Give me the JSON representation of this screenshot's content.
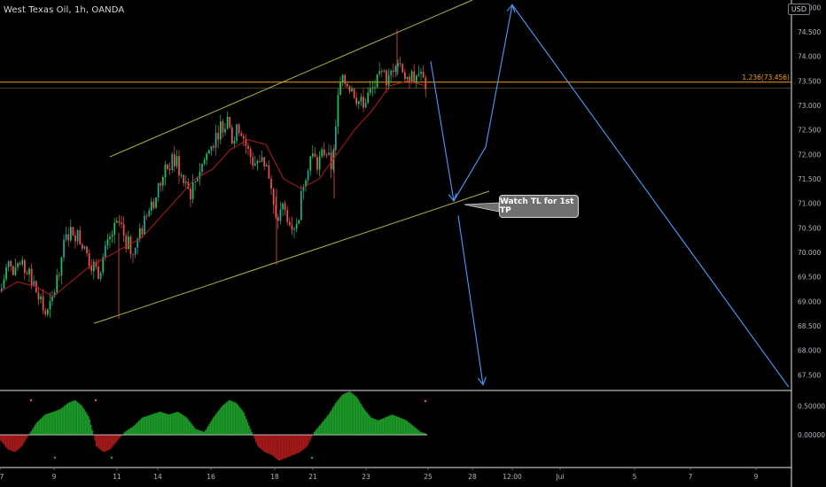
{
  "header": {
    "title": "West Texas Oil, 1h, OANDA",
    "currency": "USD"
  },
  "price_axis": {
    "labels": [
      "75.000",
      "74.500",
      "74.000",
      "73.500",
      "73.000",
      "72.500",
      "72.000",
      "71.500",
      "71.000",
      "70.500",
      "70.000",
      "69.500",
      "69.000",
      "68.500",
      "68.000",
      "67.500"
    ],
    "top_label": "75"
  },
  "indicator_axis": {
    "labels": [
      "0.50000",
      "0.00000"
    ]
  },
  "time_axis": {
    "labels": [
      "7",
      "9",
      "11",
      "14",
      "16",
      "18",
      "21",
      "23",
      "25",
      "28",
      "12:00",
      "Jul",
      "5",
      "7",
      "9"
    ]
  },
  "fib_level": {
    "label": "1.236(73.456)",
    "value": 73.456
  },
  "annotation": {
    "callout_text": "Watch TL for 1st TP"
  },
  "colors": {
    "background": "#000000",
    "candle_up": "#26a69a",
    "candle_up_bright": "#22c55e",
    "candle_down": "#ef5350",
    "moving_average": "#b71c1c",
    "channel_line": "#b5b33a",
    "fib_line": "#f59e0b",
    "projection_arrow": "#4a9cff",
    "histogram_up": "#1faa2b",
    "histogram_down": "#b71c1c",
    "axis_text": "#b2b5be"
  },
  "chart_data": {
    "type": "candlestick",
    "instrument": "West Texas Oil, 1h, OANDA",
    "y_range": [
      67.2,
      75.15
    ],
    "price_ticks": [
      75.0,
      74.5,
      74.0,
      73.5,
      73.0,
      72.5,
      72.0,
      71.5,
      71.0,
      70.5,
      70.0,
      69.5,
      69.0,
      68.5,
      68.0,
      67.5
    ],
    "x_ticks": [
      "7",
      "9",
      "11",
      "14",
      "16",
      "18",
      "21",
      "23",
      "25",
      "28",
      "12:00",
      "Jul",
      "5",
      "7",
      "9"
    ],
    "x_range": [
      0,
      932
    ],
    "ma_points": [
      [
        0,
        69.2
      ],
      [
        20,
        69.4
      ],
      [
        40,
        69.3
      ],
      [
        60,
        69.1
      ],
      [
        80,
        69.4
      ],
      [
        100,
        69.7
      ],
      [
        120,
        69.9
      ],
      [
        140,
        70.1
      ],
      [
        160,
        70.3
      ],
      [
        180,
        70.7
      ],
      [
        200,
        71.1
      ],
      [
        220,
        71.5
      ],
      [
        240,
        71.7
      ],
      [
        260,
        72.1
      ],
      [
        280,
        72.3
      ],
      [
        300,
        72.2
      ],
      [
        320,
        71.5
      ],
      [
        340,
        71.3
      ],
      [
        360,
        71.5
      ],
      [
        380,
        72.0
      ],
      [
        400,
        72.5
      ],
      [
        420,
        72.9
      ],
      [
        440,
        73.4
      ],
      [
        460,
        73.5
      ],
      [
        480,
        73.4
      ]
    ],
    "candle_path": [
      [
        0,
        69.2
      ],
      [
        8,
        69.8
      ],
      [
        15,
        69.5
      ],
      [
        22,
        69.7
      ],
      [
        30,
        69.6
      ],
      [
        38,
        69.3
      ],
      [
        46,
        68.9
      ],
      [
        52,
        68.7
      ],
      [
        58,
        69.0
      ],
      [
        66,
        69.7
      ],
      [
        72,
        70.2
      ],
      [
        80,
        70.5
      ],
      [
        88,
        70.3
      ],
      [
        95,
        70.0
      ],
      [
        102,
        69.8
      ],
      [
        110,
        69.6
      ],
      [
        118,
        70.0
      ],
      [
        126,
        70.4
      ],
      [
        134,
        70.6
      ],
      [
        142,
        70.2
      ],
      [
        150,
        70.0
      ],
      [
        158,
        70.4
      ],
      [
        166,
        70.8
      ],
      [
        174,
        71.1
      ],
      [
        182,
        71.5
      ],
      [
        190,
        71.8
      ],
      [
        198,
        71.9
      ],
      [
        206,
        71.4
      ],
      [
        214,
        71.2
      ],
      [
        222,
        71.6
      ],
      [
        230,
        71.9
      ],
      [
        238,
        72.2
      ],
      [
        246,
        72.5
      ],
      [
        254,
        72.7
      ],
      [
        262,
        72.3
      ],
      [
        270,
        72.6
      ],
      [
        278,
        72.1
      ],
      [
        286,
        71.8
      ],
      [
        294,
        72.0
      ],
      [
        302,
        71.6
      ],
      [
        310,
        70.6
      ],
      [
        318,
        70.9
      ],
      [
        326,
        70.7
      ],
      [
        334,
        70.5
      ],
      [
        342,
        71.5
      ],
      [
        350,
        72.0
      ],
      [
        358,
        71.8
      ],
      [
        366,
        72.1
      ],
      [
        374,
        71.7
      ],
      [
        382,
        73.4
      ],
      [
        390,
        73.5
      ],
      [
        398,
        73.3
      ],
      [
        406,
        73.0
      ],
      [
        414,
        73.2
      ],
      [
        422,
        73.4
      ],
      [
        430,
        73.6
      ],
      [
        438,
        73.5
      ],
      [
        446,
        74.0
      ],
      [
        452,
        73.8
      ],
      [
        460,
        73.5
      ],
      [
        466,
        73.6
      ],
      [
        474,
        73.7
      ],
      [
        480,
        73.2
      ]
    ],
    "channel_upper": [
      [
        124,
        71.95
      ],
      [
        533,
        75.15
      ]
    ],
    "channel_lower": [
      [
        106,
        68.55
      ],
      [
        552,
        71.25
      ]
    ],
    "projection_path": [
      [
        486,
        73.9
      ],
      [
        512,
        71.05
      ],
      [
        548,
        72.15
      ],
      [
        578,
        75.05
      ],
      [
        890,
        67.25
      ]
    ],
    "projection_down": [
      [
        517,
        70.75
      ],
      [
        545,
        67.3
      ]
    ],
    "indicator": {
      "y_range": [
        -0.55,
        0.75
      ],
      "ticks": [
        0.5,
        0.0
      ],
      "histogram": [
        [
          0,
          -0.1
        ],
        [
          8,
          -0.25
        ],
        [
          16,
          -0.3
        ],
        [
          24,
          -0.2
        ],
        [
          32,
          0.0
        ],
        [
          40,
          0.2
        ],
        [
          50,
          0.35
        ],
        [
          60,
          0.4
        ],
        [
          68,
          0.45
        ],
        [
          76,
          0.55
        ],
        [
          84,
          0.6
        ],
        [
          92,
          0.5
        ],
        [
          100,
          0.3
        ],
        [
          108,
          -0.2
        ],
        [
          116,
          -0.3
        ],
        [
          124,
          -0.25
        ],
        [
          132,
          -0.1
        ],
        [
          140,
          0.05
        ],
        [
          150,
          0.15
        ],
        [
          160,
          0.3
        ],
        [
          170,
          0.35
        ],
        [
          180,
          0.4
        ],
        [
          190,
          0.35
        ],
        [
          200,
          0.4
        ],
        [
          210,
          0.3
        ],
        [
          220,
          0.1
        ],
        [
          230,
          0.05
        ],
        [
          240,
          0.3
        ],
        [
          250,
          0.5
        ],
        [
          258,
          0.6
        ],
        [
          266,
          0.55
        ],
        [
          274,
          0.4
        ],
        [
          282,
          0.1
        ],
        [
          290,
          -0.2
        ],
        [
          298,
          -0.3
        ],
        [
          306,
          -0.35
        ],
        [
          314,
          -0.45
        ],
        [
          322,
          -0.4
        ],
        [
          330,
          -0.35
        ],
        [
          338,
          -0.3
        ],
        [
          346,
          -0.2
        ],
        [
          354,
          0.05
        ],
        [
          362,
          0.2
        ],
        [
          370,
          0.35
        ],
        [
          378,
          0.55
        ],
        [
          386,
          0.7
        ],
        [
          394,
          0.75
        ],
        [
          402,
          0.65
        ],
        [
          410,
          0.45
        ],
        [
          418,
          0.3
        ],
        [
          426,
          0.25
        ],
        [
          434,
          0.3
        ],
        [
          442,
          0.35
        ],
        [
          450,
          0.3
        ],
        [
          458,
          0.25
        ],
        [
          466,
          0.15
        ],
        [
          474,
          0.05
        ],
        [
          480,
          0.02
        ]
      ]
    }
  }
}
